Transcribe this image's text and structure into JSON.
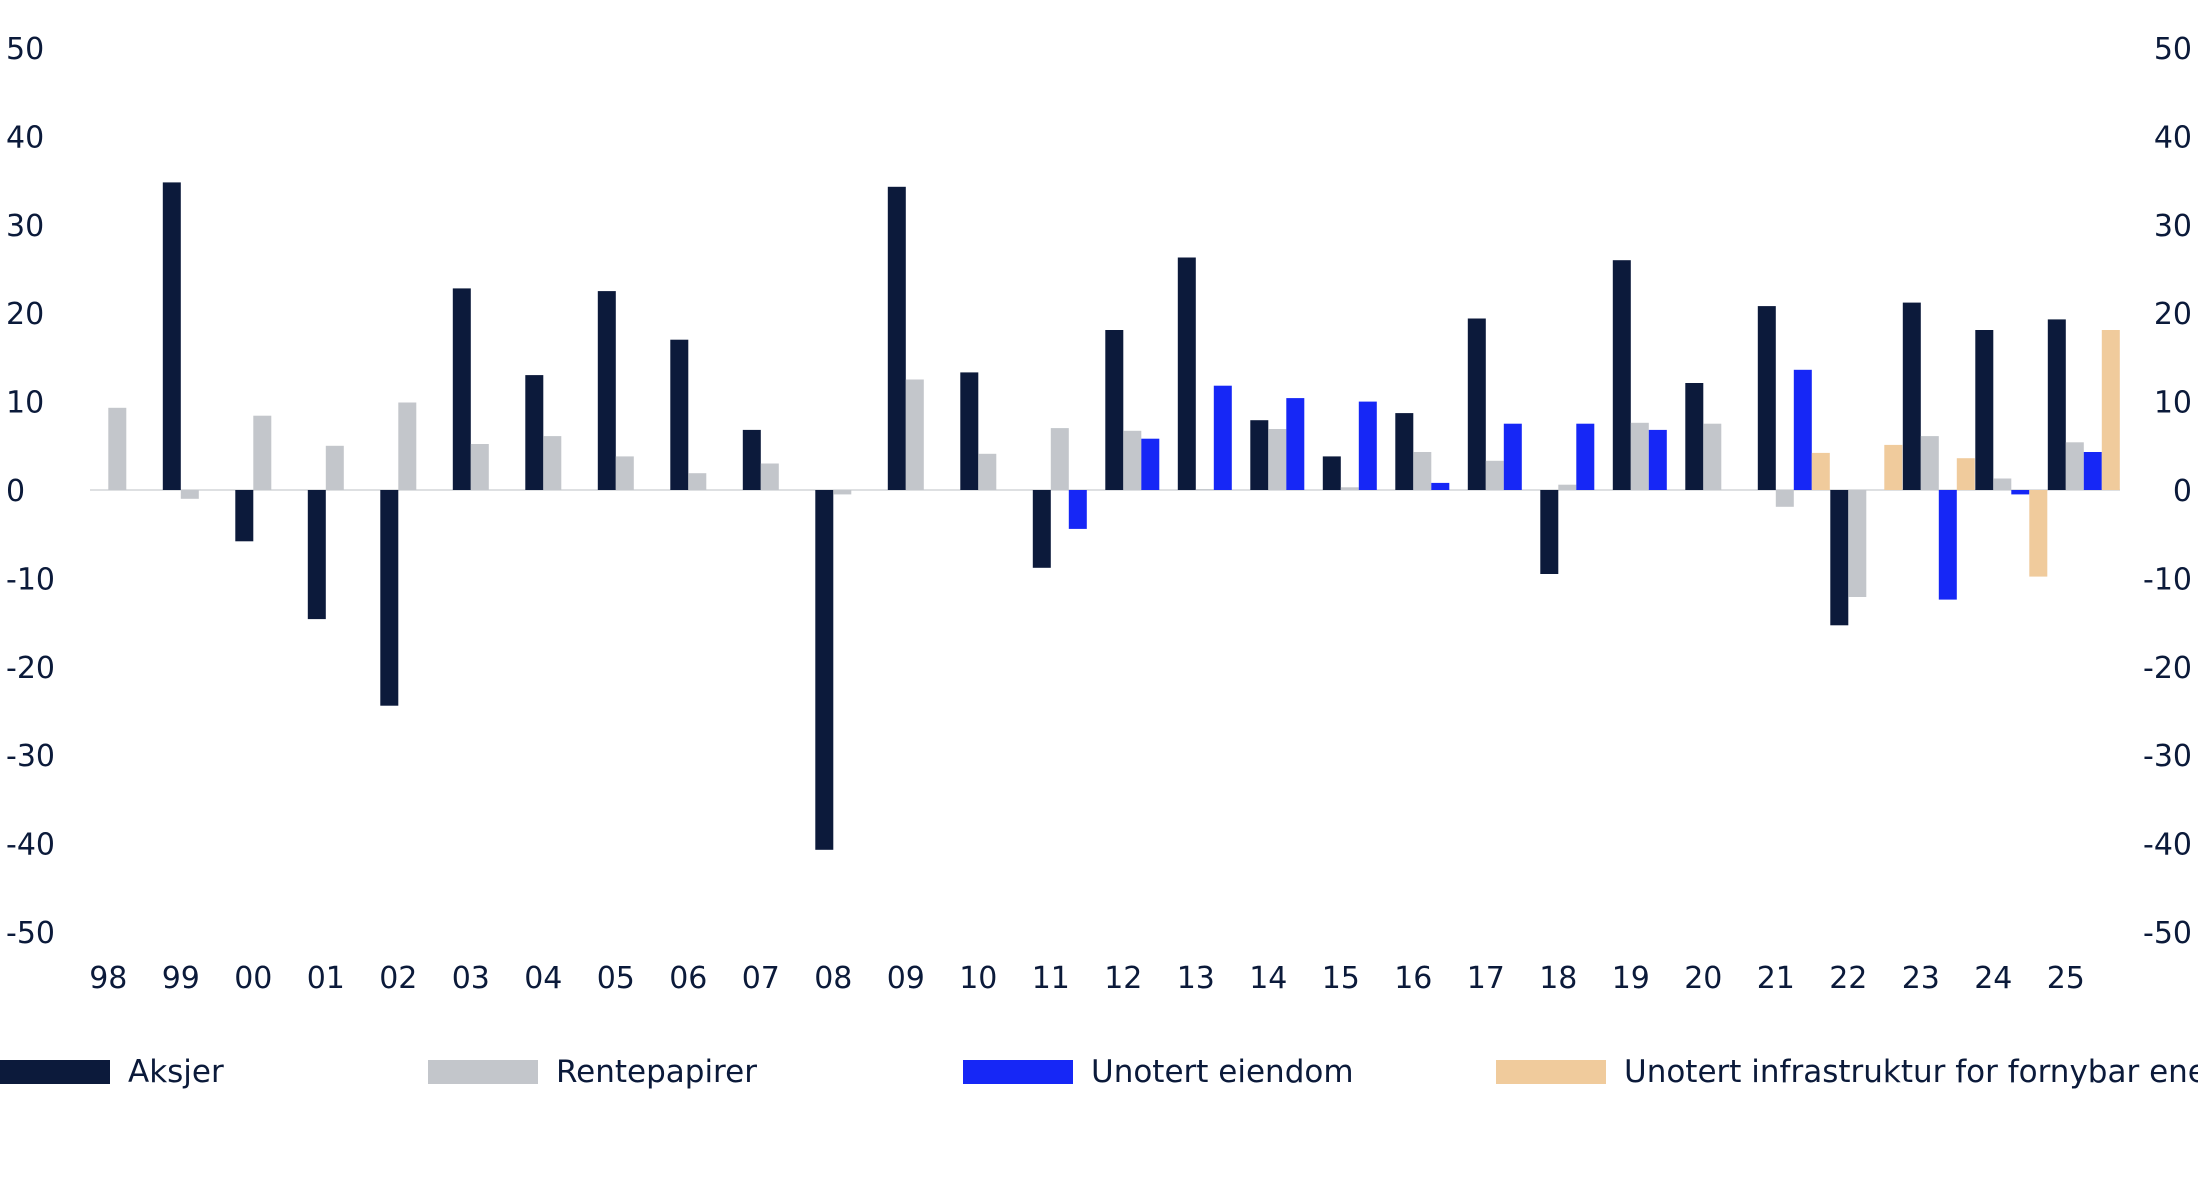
{
  "chart_data": {
    "type": "bar",
    "categories": [
      "98",
      "99",
      "00",
      "01",
      "02",
      "03",
      "04",
      "05",
      "06",
      "07",
      "08",
      "09",
      "10",
      "11",
      "12",
      "13",
      "14",
      "15",
      "16",
      "17",
      "18",
      "19",
      "20",
      "21",
      "22",
      "23",
      "24",
      "25"
    ],
    "ylim": [
      -50,
      50
    ],
    "yticks": [
      50,
      40,
      30,
      20,
      10,
      0,
      -10,
      -20,
      -30,
      -40,
      -50
    ],
    "grid": false,
    "dual_y_axis": true,
    "legend_position": "bottom",
    "series": [
      {
        "name": "Aksjer",
        "color": "#0c1a3b",
        "values": [
          null,
          34.8,
          -5.8,
          -14.6,
          -24.4,
          22.8,
          13.0,
          22.5,
          17.0,
          6.8,
          -40.7,
          34.3,
          13.3,
          -8.8,
          18.1,
          26.3,
          7.9,
          3.8,
          8.7,
          19.4,
          -9.5,
          26.0,
          12.1,
          20.8,
          -15.3,
          21.2,
          18.1,
          19.3
        ]
      },
      {
        "name": "Rentepapirer",
        "color": "#c3c6cb",
        "values": [
          9.3,
          -1.0,
          8.4,
          5.0,
          9.9,
          5.2,
          6.1,
          3.8,
          1.9,
          3.0,
          -0.5,
          12.5,
          4.1,
          7.0,
          6.7,
          0.1,
          6.9,
          0.3,
          4.3,
          3.3,
          0.6,
          7.6,
          7.5,
          -1.9,
          -12.1,
          6.1,
          1.3,
          5.4
        ]
      },
      {
        "name": "Unotert eiendom",
        "color": "#1627f6",
        "values": [
          null,
          null,
          null,
          null,
          null,
          null,
          null,
          null,
          null,
          null,
          null,
          null,
          null,
          -4.4,
          5.8,
          11.8,
          10.4,
          10.0,
          0.8,
          7.5,
          7.5,
          6.8,
          null,
          13.6,
          null,
          -12.4,
          -0.5,
          4.3
        ]
      },
      {
        "name": "Unotert infrastruktur for fornybar energi",
        "color": "#f0cb9c",
        "values": [
          null,
          null,
          null,
          null,
          null,
          null,
          null,
          null,
          null,
          null,
          null,
          null,
          null,
          null,
          null,
          null,
          null,
          null,
          null,
          null,
          null,
          null,
          null,
          4.2,
          5.1,
          3.6,
          -9.8,
          18.1
        ]
      }
    ]
  }
}
